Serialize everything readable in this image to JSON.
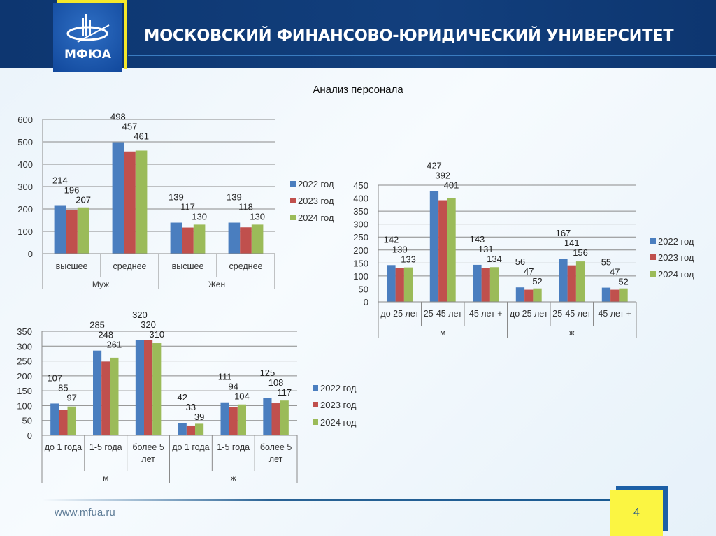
{
  "header": {
    "logo_text": "МФЮА",
    "university_name": "МОСКОВСКИЙ ФИНАНСОВО-ЮРИДИЧЕСКИЙ УНИВЕРСИТЕТ"
  },
  "slide": {
    "title": "Анализ персонала"
  },
  "footer": {
    "url": "www.mfua.ru",
    "page_number": "4"
  },
  "colors": {
    "2022": "#4a7ebf",
    "2023": "#c0504d",
    "2024": "#9bbb59"
  },
  "chart_data": [
    {
      "type": "bar",
      "categories": [
        "высшее",
        "среднее",
        "высшее",
        "среднее"
      ],
      "groups": [
        {
          "label": "Муж",
          "span": 2
        },
        {
          "label": "Жен",
          "span": 2
        }
      ],
      "series": [
        {
          "name": "2022 год",
          "values": [
            214,
            498,
            139,
            139
          ]
        },
        {
          "name": "2023 год",
          "values": [
            196,
            457,
            117,
            118
          ]
        },
        {
          "name": "2024 год",
          "values": [
            207,
            461,
            130,
            130
          ]
        }
      ],
      "ylim": [
        0,
        600
      ],
      "yticks": [
        0,
        100,
        200,
        300,
        400,
        500,
        600
      ],
      "grid": true,
      "legend": "right"
    },
    {
      "type": "bar",
      "categories": [
        "до 25 лет",
        "25-45 лет",
        "45 лет +",
        "до 25 лет",
        "25-45 лет",
        "45 лет +"
      ],
      "groups": [
        {
          "label": "м",
          "span": 3
        },
        {
          "label": "ж",
          "span": 3
        }
      ],
      "series": [
        {
          "name": "2022 год",
          "values": [
            142,
            427,
            143,
            56,
            167,
            55
          ]
        },
        {
          "name": "2023 год",
          "values": [
            130,
            392,
            131,
            47,
            141,
            47
          ]
        },
        {
          "name": "2024 год",
          "values": [
            133,
            401,
            134,
            52,
            156,
            52
          ]
        }
      ],
      "ylim": [
        0,
        450
      ],
      "yticks": [
        0,
        50,
        100,
        150,
        200,
        250,
        300,
        350,
        400,
        450
      ],
      "grid": true,
      "legend": "right"
    },
    {
      "type": "bar",
      "categories": [
        "до 1 года",
        "1-5 года",
        "более 5 лет",
        "до 1 года",
        "1-5 года",
        "более 5 лет"
      ],
      "groups": [
        {
          "label": "м",
          "span": 3
        },
        {
          "label": "ж",
          "span": 3
        }
      ],
      "series": [
        {
          "name": "2022 год",
          "values": [
            107,
            285,
            320,
            42,
            111,
            125
          ]
        },
        {
          "name": "2023 год",
          "values": [
            85,
            248,
            320,
            33,
            94,
            108
          ]
        },
        {
          "name": "2024 год",
          "values": [
            97,
            261,
            310,
            39,
            104,
            117
          ]
        }
      ],
      "ylim": [
        0,
        350
      ],
      "yticks": [
        0,
        50,
        100,
        150,
        200,
        250,
        300,
        350
      ],
      "grid": true,
      "legend": "right"
    }
  ]
}
